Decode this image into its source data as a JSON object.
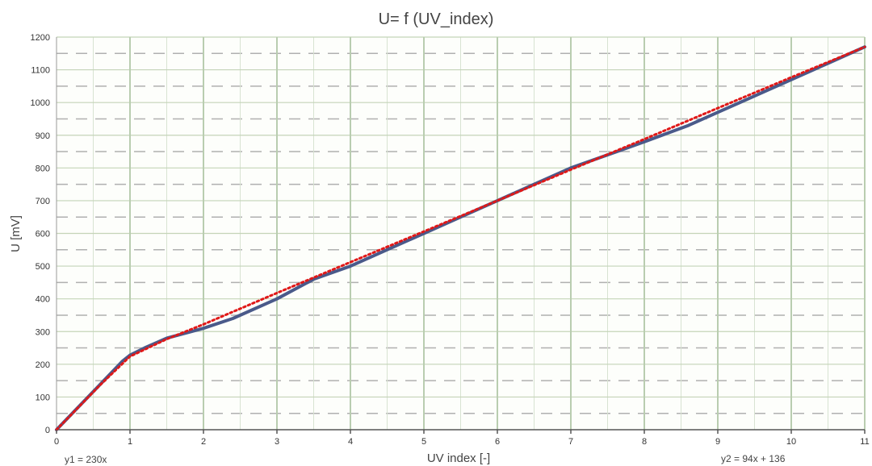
{
  "chart_data": {
    "type": "line",
    "title": "U= f (UV_index)",
    "xlabel": "UV index [-]",
    "ylabel": "U [mV]",
    "xlim": [
      0,
      11
    ],
    "ylim": [
      0,
      1200
    ],
    "x_ticks": [
      "0",
      "1",
      "2",
      "3",
      "4",
      "5",
      "6",
      "7",
      "8",
      "9",
      "10",
      "11"
    ],
    "y_ticks": [
      "0",
      "100",
      "200",
      "300",
      "400",
      "500",
      "600",
      "700",
      "800",
      "900",
      "1000",
      "1100",
      "1200"
    ],
    "grid": true,
    "legend": "none",
    "annotations": [
      "y1 = 230x",
      "y2 = 94x + 136"
    ],
    "series": [
      {
        "color": "#4a5a8a",
        "style": "solid",
        "x": [
          0,
          0.3,
          0.6,
          0.9,
          1.0,
          1.2,
          1.5,
          2.0,
          2.4,
          3.0,
          3.5,
          4.0,
          4.6,
          5.0,
          5.5,
          6.0,
          6.5,
          7.0,
          7.5,
          8.0,
          8.6,
          9.0,
          9.5,
          10.0,
          10.5,
          11.0
        ],
        "values": [
          0,
          70,
          140,
          210,
          228,
          250,
          280,
          310,
          340,
          400,
          460,
          500,
          560,
          600,
          650,
          700,
          750,
          800,
          840,
          880,
          930,
          970,
          1020,
          1070,
          1120,
          1170
        ]
      },
      {
        "color": "#e01818",
        "style": "dotted",
        "x": [
          0,
          0.3,
          0.6,
          1.0,
          1.5,
          2.0,
          3.0,
          4.0,
          5.0,
          6.0,
          7.0,
          8.0,
          9.0,
          10.0,
          11.0
        ],
        "values": [
          0,
          69,
          138,
          224,
          277,
          322,
          418,
          512,
          606,
          700,
          795,
          888,
          983,
          1077,
          1170
        ]
      }
    ]
  }
}
